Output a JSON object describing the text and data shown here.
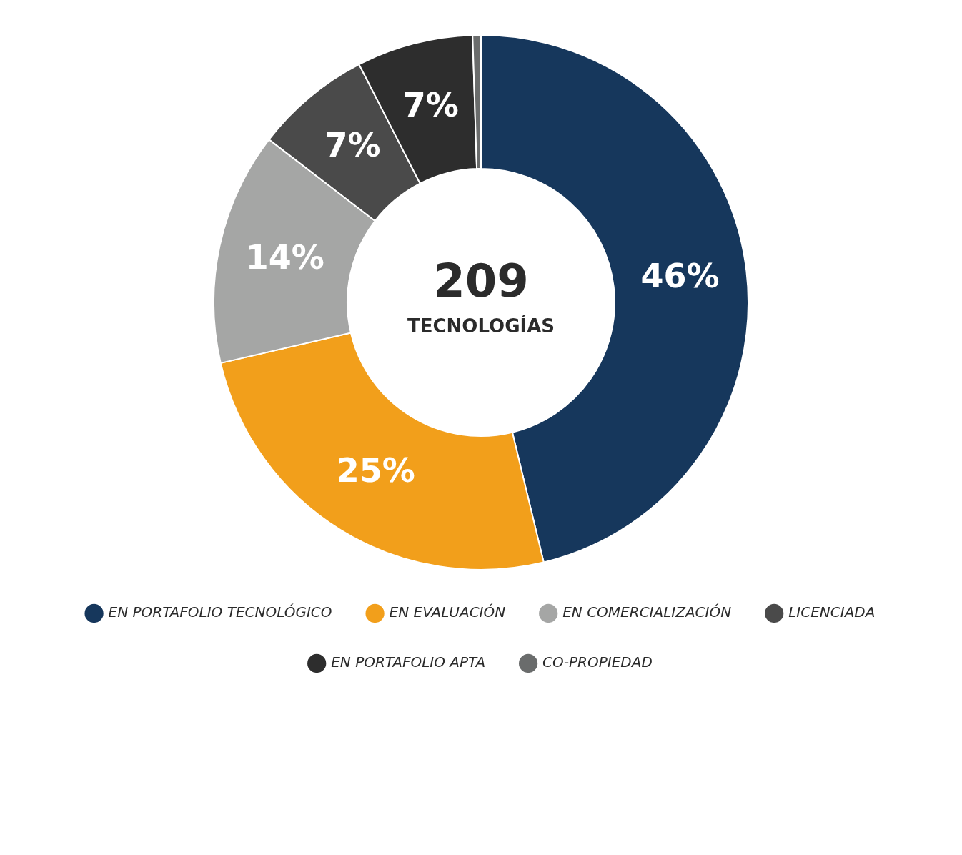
{
  "chart_data": {
    "type": "donut",
    "categories": [
      "EN PORTAFOLIO TECNOLÓGICO",
      "EN EVALUACIÓN",
      "EN COMERCIALIZACIÓN",
      "LICENCIADA",
      "EN PORTAFOLIO APTA",
      "CO-PROPIEDAD"
    ],
    "values": [
      46,
      25,
      14,
      7,
      7,
      0.5
    ],
    "colors": [
      "#16375c",
      "#f29f1b",
      "#a5a6a5",
      "#4a4a4a",
      "#2d2d2d",
      "#6a6c6c"
    ],
    "value_labels": [
      "46%",
      "25%",
      "14%",
      "7%",
      "7%",
      null
    ],
    "annotations": [
      "209",
      "TECNOLOGÍAS"
    ],
    "legend": "bottom"
  }
}
